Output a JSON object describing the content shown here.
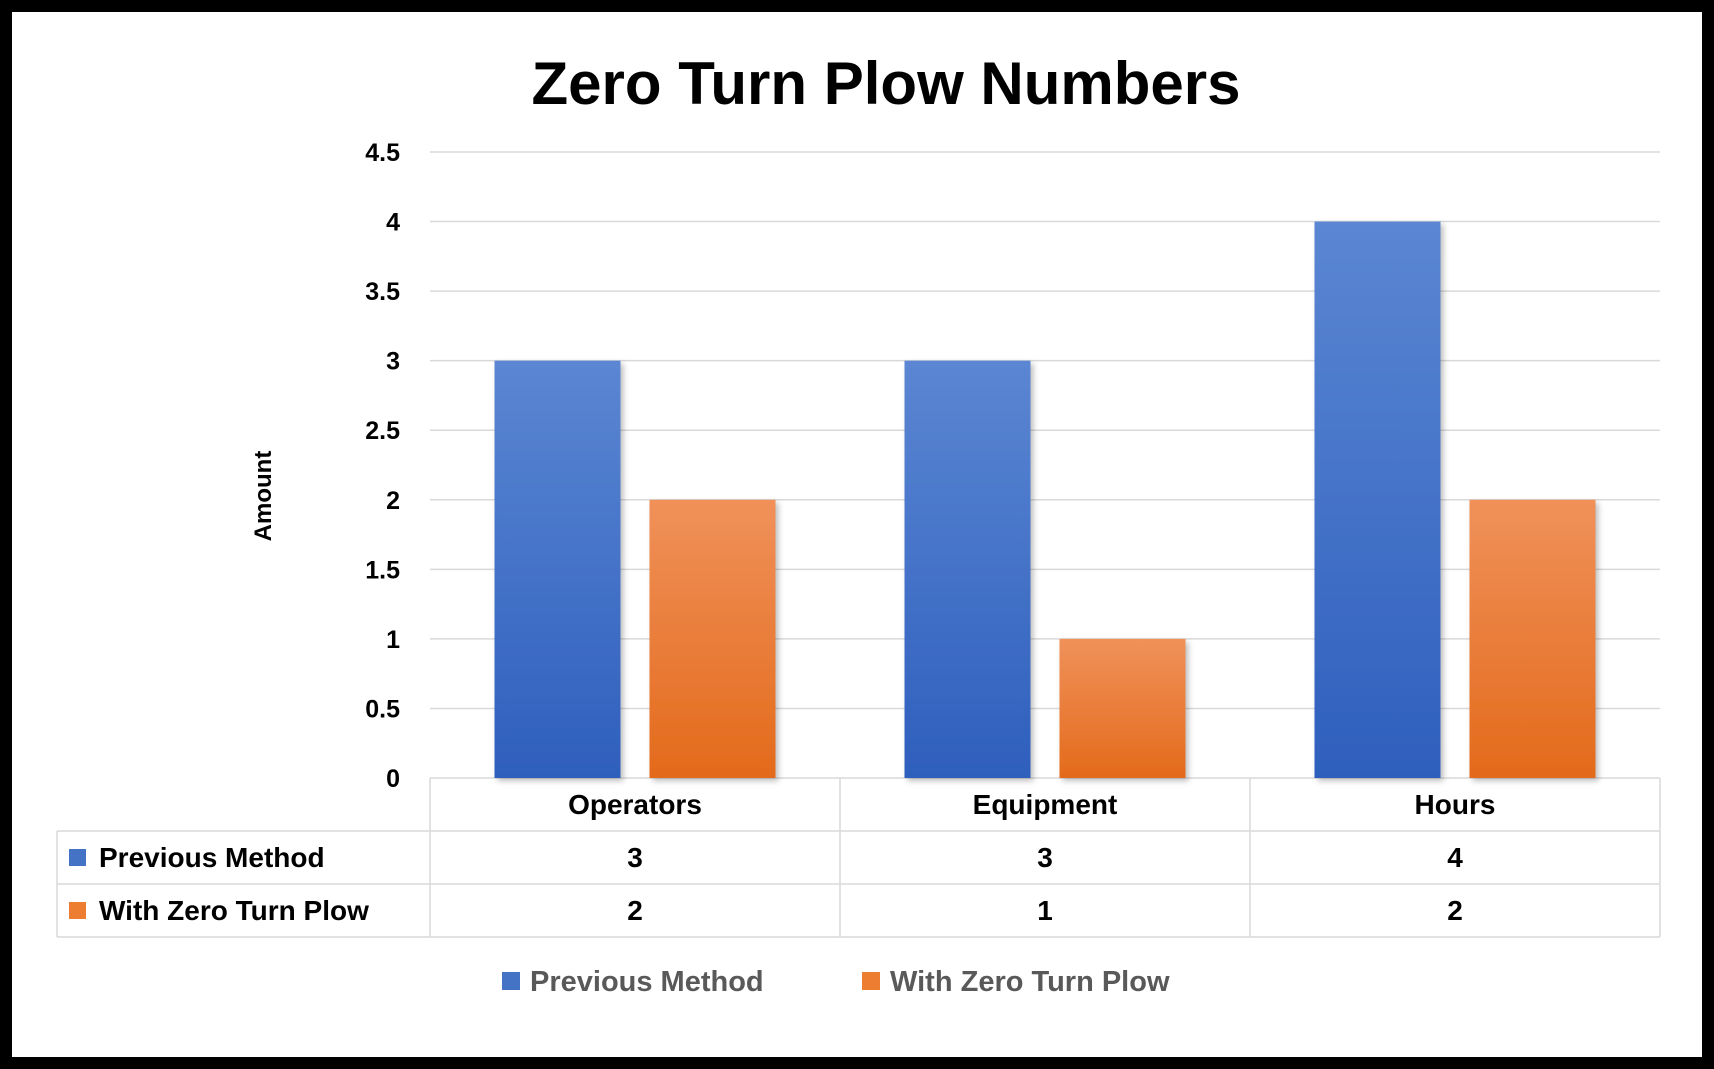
{
  "chart_data": {
    "type": "bar",
    "title": "Zero Turn Plow Numbers",
    "xlabel": "",
    "ylabel": "Amount",
    "categories": [
      "Operators",
      "Equipment",
      "Hours"
    ],
    "series": [
      {
        "name": "Previous Method",
        "values": [
          3,
          3,
          4
        ],
        "color": "#4472c4"
      },
      {
        "name": "With Zero Turn Plow",
        "values": [
          2,
          1,
          2
        ],
        "color": "#ed7d31"
      }
    ],
    "ylim": [
      0,
      4.5
    ],
    "yticks": [
      "0",
      "0.5",
      "1",
      "1.5",
      "2",
      "2.5",
      "3",
      "3.5",
      "4",
      "4.5"
    ],
    "grid": true,
    "legend": "bottom",
    "data_table": true
  }
}
